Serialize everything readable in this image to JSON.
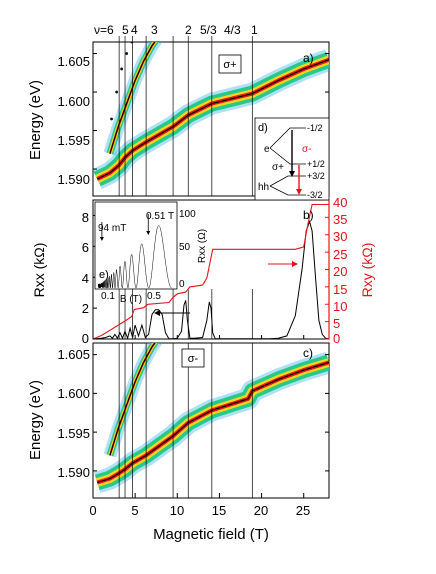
{
  "chart_data": [
    {
      "panel": "a",
      "type": "heatmap",
      "label": "a)",
      "polarization_box": "σ+",
      "ylabel": "Energy (eV)",
      "ylim": [
        1.5865,
        1.6065
      ],
      "xlim": [
        0,
        28
      ],
      "yticks": [
        "1.590",
        "1.595",
        "1.600",
        "1.605"
      ],
      "ytick_values": [
        1.59,
        1.595,
        1.6,
        1.605
      ],
      "filling_factor_labels": [
        "ν=6",
        "5",
        "4",
        "3",
        "2",
        "5/3",
        "4/3",
        "1"
      ],
      "filling_factor_fields": [
        3.1,
        3.8,
        4.7,
        6.3,
        9.5,
        11.3,
        14.1,
        18.9
      ],
      "lines": [
        {
          "name": "main",
          "x": [
            0.5,
            2,
            3.1,
            3.8,
            4.7,
            6.3,
            9.5,
            11.3,
            14.1,
            18.9,
            22,
            25,
            28
          ],
          "y": [
            1.5887,
            1.5895,
            1.5905,
            1.5915,
            1.5924,
            1.5935,
            1.5955,
            1.597,
            1.5985,
            1.5998,
            1.6015,
            1.603,
            1.6042
          ]
        },
        {
          "name": "upper",
          "x": [
            2,
            3,
            4,
            5,
            6,
            7,
            8
          ],
          "y": [
            1.592,
            1.5955,
            1.5985,
            1.6015,
            1.604,
            1.606,
            1.6075
          ]
        },
        {
          "name": "dots",
          "x": [
            2.2,
            2.8,
            3.4,
            4,
            4.6,
            5.2
          ],
          "y": [
            1.5965,
            1.6,
            1.603,
            1.605,
            1.6065,
            1.6075
          ]
        }
      ]
    },
    {
      "panel": "b",
      "type": "line",
      "label": "b)",
      "ylabel": "Rxx (kΩ)",
      "y2label": "Rxy (kΩ)",
      "ylim": [
        0,
        9
      ],
      "y2lim": [
        0,
        40
      ],
      "yticks": [
        "0",
        "2",
        "4",
        "6",
        "8"
      ],
      "y2ticks": [
        "0",
        "5",
        "10",
        "15",
        "20",
        "25",
        "30",
        "35",
        "40"
      ],
      "series": [
        {
          "name": "Rxx",
          "color": "#000000",
          "x": [
            0,
            1,
            1.5,
            2,
            2.3,
            2.6,
            2.9,
            3.2,
            3.5,
            3.8,
            4.1,
            4.4,
            4.7,
            5,
            5.4,
            5.8,
            6.2,
            6.6,
            7,
            7.4,
            7.8,
            8.2,
            8.6,
            9,
            9.5,
            10,
            10.5,
            10.8,
            11,
            11.2,
            11.5,
            12,
            13,
            13.5,
            13.8,
            14,
            14.2,
            14.5,
            15,
            16,
            18,
            21,
            22,
            23,
            24,
            24.8,
            25.3,
            25.7,
            26,
            26.4,
            26.8,
            27.2,
            27.6,
            28
          ],
          "y": [
            0,
            0.05,
            0.1,
            0.2,
            0.05,
            0.3,
            0.05,
            0.4,
            0.05,
            0.5,
            0.05,
            0.7,
            0.1,
            0.9,
            0.2,
            0.9,
            0.1,
            0.3,
            1.6,
            1.9,
            1.9,
            1.6,
            0.4,
            0.02,
            0.02,
            0.05,
            0.5,
            2.2,
            2.5,
            1.2,
            0.05,
            0.05,
            0.1,
            1.2,
            2.4,
            2.0,
            0.4,
            0.02,
            0.02,
            0.02,
            0.02,
            0.02,
            0.05,
            0.2,
            1.5,
            4.5,
            7.0,
            7.6,
            7.0,
            4.0,
            1.2,
            0.3,
            0.05,
            0.02
          ]
        },
        {
          "name": "Rxy",
          "color": "#e8141a",
          "x": [
            0,
            1,
            2,
            3,
            4,
            4.6,
            4.9,
            6,
            6.5,
            9,
            9.5,
            10,
            11,
            11.5,
            13,
            13.5,
            14.2,
            18,
            24,
            25,
            25.5,
            26,
            27,
            28
          ],
          "y": [
            0,
            1,
            2.5,
            4,
            5.5,
            6.5,
            8.5,
            9,
            10,
            10.5,
            12,
            13,
            13.5,
            15,
            15.5,
            17.5,
            25.8,
            25.8,
            25.8,
            26.5,
            33,
            38.7,
            38.7,
            38.7
          ]
        }
      ]
    },
    {
      "panel": "e",
      "type": "line",
      "label": "e)",
      "xlabel": "B (T)",
      "ylabel": "Rxx (Ω)",
      "xlim": [
        0.05,
        0.75
      ],
      "ylim": [
        0,
        120
      ],
      "xticks": [
        "0.1",
        "0.5"
      ],
      "yticks": [
        "0",
        "50",
        "100"
      ],
      "annotations": [
        "94 mT",
        "0.51 T"
      ],
      "annotation_fields": [
        0.094,
        0.51
      ]
    },
    {
      "panel": "c",
      "type": "heatmap",
      "label": "c)",
      "polarization_box": "σ-",
      "xlabel": "Magnetic field (T)",
      "ylabel": "Energy (eV)",
      "ylim": [
        1.5865,
        1.6065
      ],
      "xlim": [
        0,
        28
      ],
      "xticks": [
        "0",
        "5",
        "10",
        "15",
        "20",
        "25"
      ],
      "xtick_values": [
        0,
        5,
        10,
        15,
        20,
        25
      ],
      "yticks": [
        "1.590",
        "1.595",
        "1.600",
        "1.605"
      ],
      "ytick_values": [
        1.59,
        1.595,
        1.6,
        1.605
      ],
      "lines": [
        {
          "name": "main",
          "x": [
            0.5,
            2,
            3.1,
            3.8,
            4.7,
            6.3,
            9.5,
            11.3,
            14.1,
            18.4,
            18.9,
            22,
            25,
            28
          ],
          "y": [
            1.5885,
            1.589,
            1.5897,
            1.5902,
            1.591,
            1.592,
            1.5945,
            1.5962,
            1.5978,
            1.5993,
            1.6003,
            1.6018,
            1.603,
            1.604
          ]
        },
        {
          "name": "upper",
          "x": [
            2,
            3,
            4,
            5,
            6,
            7,
            8
          ],
          "y": [
            1.592,
            1.5955,
            1.5985,
            1.6015,
            1.604,
            1.606,
            1.6075
          ]
        }
      ]
    },
    {
      "panel": "d",
      "type": "diagram",
      "label": "d)",
      "levels": [
        "-1/2",
        "+1/2",
        "+3/2",
        "-3/2"
      ],
      "bands": [
        "e",
        "hh"
      ],
      "transitions": [
        "σ+",
        "σ-"
      ]
    }
  ],
  "palette": {
    "axis": "#000000",
    "red_axis": "#e8141a",
    "heat": [
      "#2a62d8",
      "#1ea7e8",
      "#27c98a",
      "#9bd63c",
      "#f0d71c",
      "#f28c1d",
      "#e8141a"
    ]
  }
}
